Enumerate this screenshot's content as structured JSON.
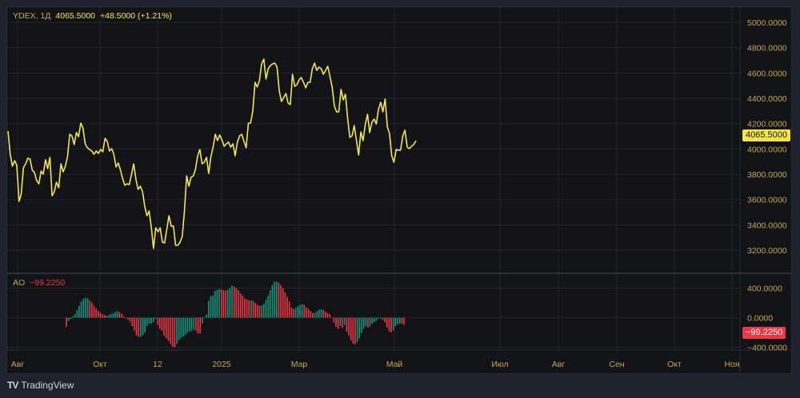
{
  "header": {
    "symbol": "YDEX, 1Д",
    "last": "4065.5000",
    "change": "+48.5000 (+1.21%)"
  },
  "ao_header": {
    "name": "AO",
    "value": "−99.2250"
  },
  "badges": {
    "last_price": "4065.5000",
    "ao_last": "−99.2250"
  },
  "brand": {
    "name": "TradingView",
    "logo": "TV"
  },
  "colors": {
    "line": "#f5e642",
    "up": "#089981",
    "down": "#f23645",
    "tick": "#c9a64a",
    "grid": "#22252c"
  },
  "chart_data": [
    {
      "type": "line",
      "title": "YDEX, 1Д",
      "ylim": [
        3100,
        5100
      ],
      "y_ticks": [
        "5000.0000",
        "4800.0000",
        "4600.0000",
        "4400.0000",
        "4200.0000",
        "4000.0000",
        "3800.0000",
        "3600.0000",
        "3400.0000",
        "3200.0000"
      ],
      "x_ticks": [
        "Авг",
        "Окт",
        "12",
        "2025",
        "Мар",
        "Май",
        "Июл",
        "Авг",
        "Сен",
        "Окт",
        "Ноя"
      ],
      "values": [
        4141,
        3958,
        3863,
        3907,
        3870,
        3585,
        3642,
        3851,
        3882,
        3926,
        3920,
        3832,
        3813,
        3750,
        3724,
        3825,
        3800,
        3914,
        3844,
        3933,
        3630,
        3661,
        3737,
        3693,
        3882,
        3819,
        3863,
        3939,
        4116,
        4103,
        4034,
        4129,
        4097,
        4204,
        4166,
        4040,
        4009,
        3996,
        3983,
        3958,
        3983,
        3964,
        3996,
        3977,
        4084,
        4059,
        3983,
        4002,
        3958,
        3857,
        3889,
        3832,
        3762,
        3712,
        3724,
        3718,
        3800,
        3882,
        3762,
        3680,
        3705,
        3661,
        3547,
        3472,
        3510,
        3377,
        3213,
        3377,
        3345,
        3377,
        3263,
        3257,
        3364,
        3472,
        3390,
        3390,
        3238,
        3238,
        3263,
        3307,
        3503,
        3787,
        3705,
        3775,
        3787,
        3838,
        3945,
        3996,
        3882,
        3895,
        3933,
        3806,
        3939,
        4015,
        4116,
        4065,
        4110,
        4072,
        4021,
        4040,
        4053,
        4015,
        4040,
        3945,
        4053,
        4103,
        4116,
        4059,
        4009,
        4204,
        4204,
        4299,
        4526,
        4489,
        4539,
        4672,
        4710,
        4552,
        4634,
        4659,
        4672,
        4678,
        4646,
        4457,
        4375,
        4406,
        4438,
        4362,
        4350,
        4590,
        4495,
        4507,
        4545,
        4564,
        4526,
        4482,
        4526,
        4526,
        4634,
        4678,
        4621,
        4646,
        4634,
        4590,
        4621,
        4653,
        4571,
        4489,
        4337,
        4293,
        4293,
        4470,
        4388,
        4432,
        4242,
        4091,
        4103,
        4185,
        4065,
        3952,
        4135,
        4065,
        4192,
        4274,
        4129,
        4211,
        4236,
        4198,
        4312,
        4369,
        4293,
        4394,
        4173,
        4122,
        3945,
        3895,
        3996,
        3990,
        3990,
        4103,
        4148,
        4015,
        4002,
        4021,
        4034,
        4065.5
      ]
    },
    {
      "type": "bar",
      "title": "AO",
      "ylim": [
        -440,
        500
      ],
      "y_ticks": [
        "400.0000",
        "0.0000",
        "−400.0000"
      ],
      "values": [
        -122,
        -43,
        -18,
        18,
        47,
        101,
        162,
        220,
        256,
        263,
        263,
        234,
        205,
        162,
        126,
        94,
        65,
        47,
        36,
        25,
        40,
        47,
        61,
        76,
        90,
        72,
        54,
        18,
        -7,
        -25,
        -54,
        -115,
        -176,
        -241,
        -259,
        -259,
        -241,
        -198,
        -115,
        -79,
        -79,
        -61,
        -18,
        -97,
        -151,
        -176,
        -241,
        -277,
        -313,
        -356,
        -392,
        -400,
        -356,
        -306,
        -277,
        -256,
        -234,
        -205,
        -187,
        -176,
        -162,
        -176,
        -212,
        -216,
        -79,
        4,
        40,
        227,
        292,
        299,
        364,
        378,
        392,
        382,
        371,
        364,
        378,
        400,
        436,
        421,
        400,
        371,
        328,
        299,
        263,
        245,
        234,
        234,
        227,
        198,
        173,
        162,
        162,
        191,
        245,
        299,
        371,
        443,
        486,
        486,
        472,
        443,
        400,
        342,
        281,
        220,
        137,
        119,
        133,
        155,
        173,
        184,
        173,
        137,
        119,
        90,
        65,
        65,
        90,
        108,
        115,
        108,
        83,
        65,
        47,
        -7,
        -68,
        -126,
        -151,
        -115,
        -140,
        -97,
        -187,
        -241,
        -306,
        -349,
        -360,
        -331,
        -277,
        -205,
        -151,
        -115,
        -133,
        -115,
        -79,
        -61,
        -43,
        -18,
        -7,
        -32,
        -61,
        -133,
        -187,
        -198,
        -176,
        -115,
        -90,
        -79,
        -83,
        -99.225
      ]
    }
  ]
}
